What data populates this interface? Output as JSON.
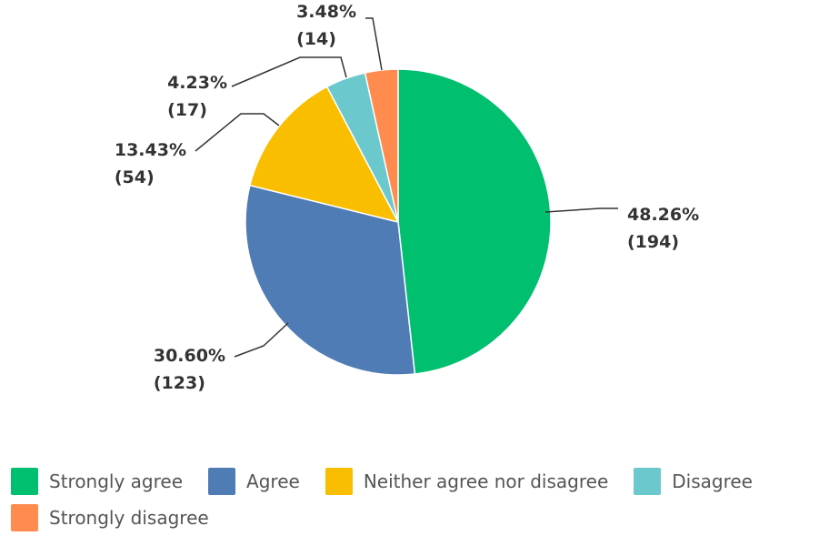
{
  "chart_data": {
    "type": "pie",
    "series": [
      {
        "name": "Strongly agree",
        "percent_label": "48.26%",
        "count_label": "(194)",
        "value": 194,
        "color": "#00bf6f"
      },
      {
        "name": "Agree",
        "percent_label": "30.60%",
        "count_label": "(123)",
        "value": 123,
        "color": "#507cb6"
      },
      {
        "name": "Neither agree nor disagree",
        "percent_label": "13.43%",
        "count_label": "(54)",
        "value": 54,
        "color": "#f9be00"
      },
      {
        "name": "Disagree",
        "percent_label": "4.23%",
        "count_label": "(17)",
        "value": 17,
        "color": "#6bc8cd"
      },
      {
        "name": "Strongly disagree",
        "percent_label": "3.48%",
        "count_label": "(14)",
        "value": 14,
        "color": "#ff8b4f"
      }
    ],
    "start": "12 o'clock",
    "direction": "clockwise",
    "legend": "bottom"
  }
}
